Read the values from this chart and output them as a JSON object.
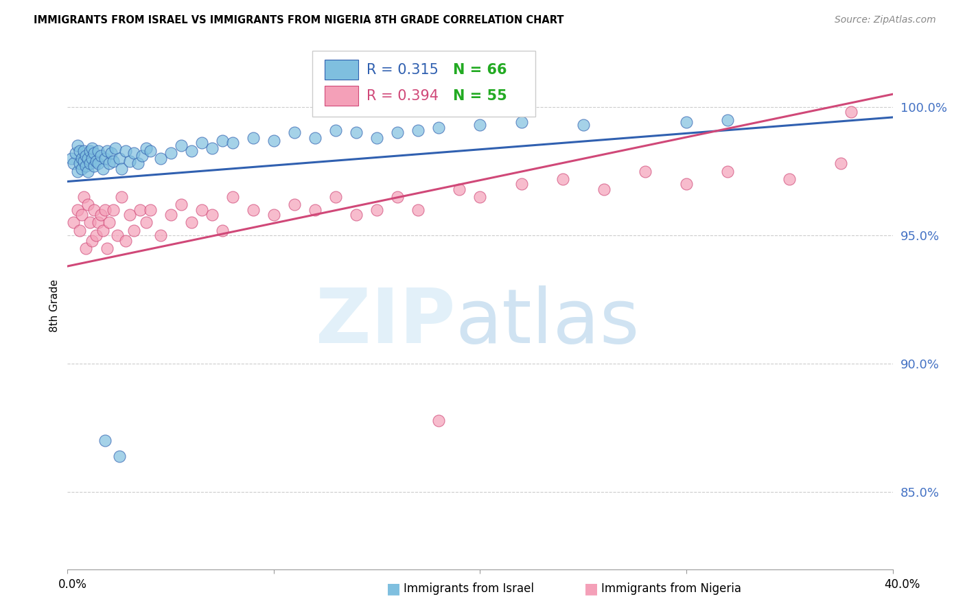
{
  "title": "IMMIGRANTS FROM ISRAEL VS IMMIGRANTS FROM NIGERIA 8TH GRADE CORRELATION CHART",
  "source": "Source: ZipAtlas.com",
  "ylabel": "8th Grade",
  "ytick_labels": [
    "100.0%",
    "95.0%",
    "90.0%",
    "85.0%"
  ],
  "ytick_values": [
    1.0,
    0.95,
    0.9,
    0.85
  ],
  "xlim": [
    0.0,
    0.4
  ],
  "ylim": [
    0.82,
    1.025
  ],
  "r_israel": 0.315,
  "n_israel": 66,
  "r_nigeria": 0.394,
  "n_nigeria": 55,
  "color_israel": "#7fbfdf",
  "color_nigeria": "#f4a0b8",
  "trendline_color_israel": "#3060b0",
  "trendline_color_nigeria": "#d04878",
  "legend_color_r": "#3060b0",
  "legend_color_n": "#22aa22",
  "background_color": "#ffffff",
  "israel_trend_x0": 0.0,
  "israel_trend_y0": 0.971,
  "israel_trend_x1": 0.4,
  "israel_trend_y1": 0.996,
  "nigeria_trend_x0": 0.0,
  "nigeria_trend_y0": 0.938,
  "nigeria_trend_x1": 0.4,
  "nigeria_trend_y1": 1.005
}
